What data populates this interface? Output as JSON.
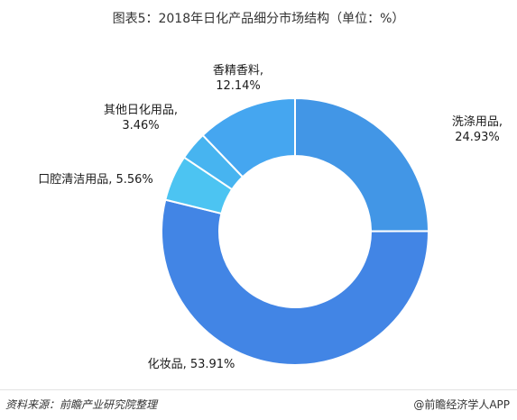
{
  "title": "图表5：2018年日化产品细分市场结构（单位：%）",
  "source": "资料来源：前瞻产业研究院整理",
  "brand": "@前瞻经济学人APP",
  "chart_data": {
    "type": "pie",
    "donut": true,
    "slices": [
      {
        "name": "洗涤用品",
        "value": 24.93,
        "color": "#4296E6",
        "label_lines": [
          "洗涤用品,",
          "24.93%"
        ]
      },
      {
        "name": "化妆品",
        "value": 53.91,
        "color": "#4285E5",
        "label_lines": [
          "化妆品, 53.91%"
        ]
      },
      {
        "name": "口腔清洁用品",
        "value": 5.56,
        "color": "#4CC4F2",
        "label_lines": [
          "口腔清洁用品, 5.56%"
        ]
      },
      {
        "name": "其他日化用品",
        "value": 3.46,
        "color": "#47B4F0",
        "label_lines": [
          "其他日化用品,",
          "3.46%"
        ]
      },
      {
        "name": "香精香料",
        "value": 12.14,
        "color": "#45A6F0",
        "label_lines": [
          "香精香料,",
          "12.14%"
        ]
      }
    ]
  }
}
